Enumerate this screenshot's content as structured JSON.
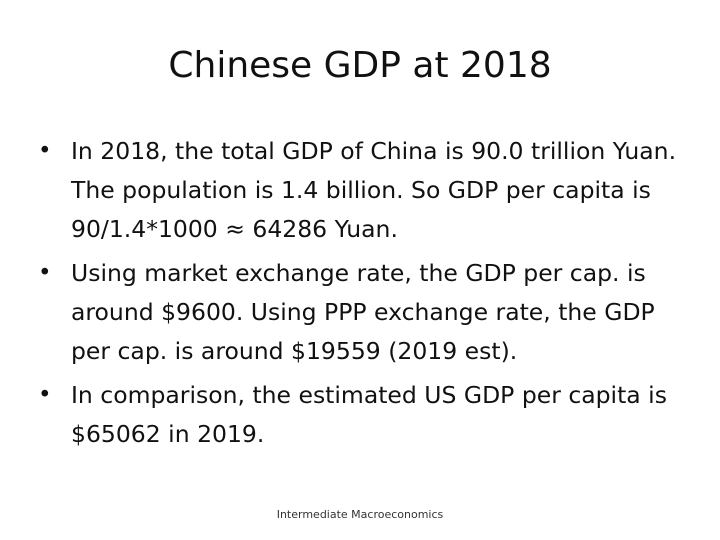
{
  "slide": {
    "title": "Chinese GDP at 2018",
    "bullet_symbol": "•",
    "bullets": [
      "In 2018, the total GDP of China is 90.0 trillion Yuan. The population is 1.4 billion. So GDP per capita is 90/1.4*1000 ≈ 64286 Yuan.",
      "Using market exchange rate, the GDP per cap. is around $9600. Using PPP exchange rate, the GDP per cap. is around $19559 (2019 est).",
      "In comparison, the estimated US GDP per capita is $65062 in 2019."
    ],
    "footer": "Intermediate Macroeconomics"
  }
}
